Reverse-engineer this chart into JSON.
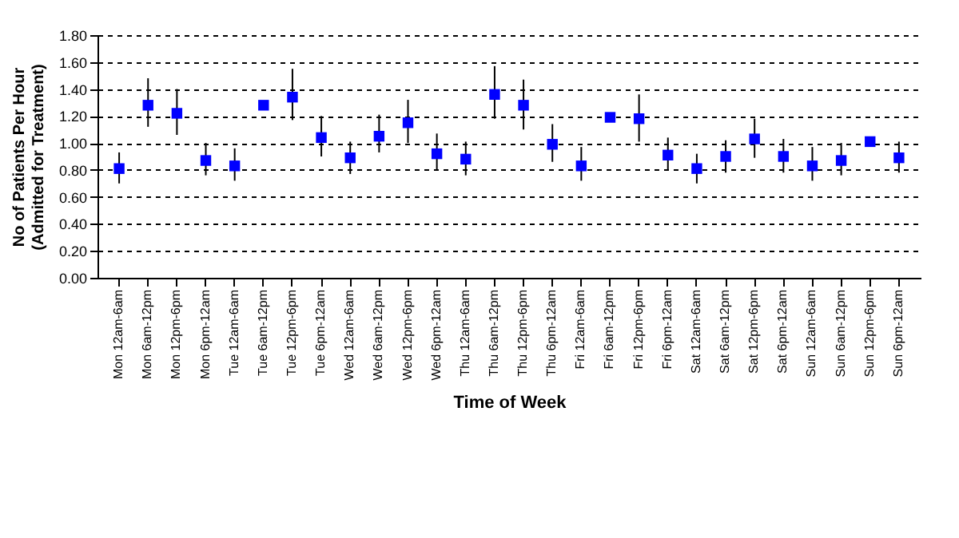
{
  "chart_data": {
    "type": "scatter",
    "xlabel": "Time of Week",
    "ylabel": "No of Patients Per Hour\n(Admitted for Treatment)",
    "categories": [
      "Mon 12am-6am",
      "Mon 6am-12pm",
      "Mon 12pm-6pm",
      "Mon 6pm-12am",
      "Tue 12am-6am",
      "Tue 6am-12pm",
      "Tue 12pm-6pm",
      "Tue 6pm-12am",
      "Wed 12am-6am",
      "Wed 6am-12pm",
      "Wed 12pm-6pm",
      "Wed 6pm-12am",
      "Thu 12am-6am",
      "Thu 6am-12pm",
      "Thu 12pm-6pm",
      "Thu 6pm-12am",
      "Fri 12am-6am",
      "Fri 6am-12pm",
      "Fri 12pm-6pm",
      "Fri 6pm-12am",
      "Sat 12am-6am",
      "Sat 6am-12pm",
      "Sat 12pm-6pm",
      "Sat 6pm-12am",
      "Sun 12am-6am",
      "Sun 6am-12pm",
      "Sun 12pm-6pm",
      "Sun 6pm-12am"
    ],
    "series": [
      {
        "color": "#0000ff",
        "values": [
          0.81,
          1.28,
          1.22,
          0.87,
          0.83,
          1.28,
          1.34,
          1.04,
          0.89,
          1.05,
          1.15,
          0.92,
          0.88,
          1.36,
          1.28,
          0.99,
          0.83,
          1.19,
          1.18,
          0.91,
          0.81,
          0.9,
          1.03,
          0.9,
          0.83,
          0.87,
          1.01,
          0.89
        ],
        "errors": [
          [
            0.7,
            0.93
          ],
          [
            1.12,
            1.48
          ],
          [
            1.06,
            1.4
          ],
          [
            0.76,
            1.0
          ],
          [
            0.72,
            0.96
          ],
          null,
          [
            1.17,
            1.55
          ],
          [
            0.9,
            1.2
          ],
          [
            0.77,
            1.01
          ],
          [
            0.93,
            1.21
          ],
          [
            1.0,
            1.32
          ],
          [
            0.8,
            1.07
          ],
          [
            0.76,
            1.01
          ],
          [
            1.18,
            1.57
          ],
          [
            1.1,
            1.47
          ],
          [
            0.86,
            1.14
          ],
          [
            0.72,
            0.97
          ],
          null,
          [
            1.01,
            1.36
          ],
          [
            0.8,
            1.04
          ],
          [
            0.7,
            0.92
          ],
          [
            0.78,
            1.02
          ],
          [
            0.89,
            1.18
          ],
          [
            0.78,
            1.03
          ],
          [
            0.72,
            0.97
          ],
          [
            0.76,
            1.0
          ],
          null,
          [
            0.78,
            1.01
          ]
        ]
      }
    ],
    "ylim": [
      0,
      1.8
    ],
    "yticks": [
      {
        "value": 0,
        "label": "0.00"
      },
      {
        "value": 0.2,
        "label": "0.20"
      },
      {
        "value": 0.4,
        "label": "0.40"
      },
      {
        "value": 0.6,
        "label": "0.60"
      },
      {
        "value": 0.8,
        "label": "0.80"
      },
      {
        "value": 1,
        "label": "1.00"
      },
      {
        "value": 1.2,
        "label": "1.20"
      },
      {
        "value": 1.4,
        "label": "1.40"
      },
      {
        "value": 1.6,
        "label": "1.60"
      },
      {
        "value": 1.8,
        "label": "1.80"
      }
    ],
    "grid": "y",
    "marker": "square"
  }
}
